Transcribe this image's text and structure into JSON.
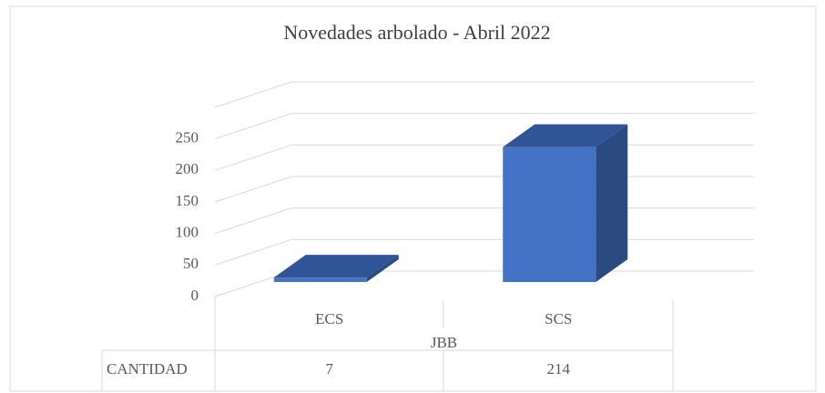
{
  "chart_data": {
    "type": "bar3d",
    "title": "Novedades arbolado - Abril 2022",
    "categories": [
      "ECS",
      "SCS"
    ],
    "group": "JBB",
    "series": [
      {
        "name": "CANTIDAD",
        "color": "#4472c4",
        "values": [
          7,
          214
        ]
      }
    ],
    "ylim": [
      0,
      300
    ],
    "yticks": [
      0,
      50,
      100,
      150,
      200,
      250
    ],
    "grid": true
  }
}
